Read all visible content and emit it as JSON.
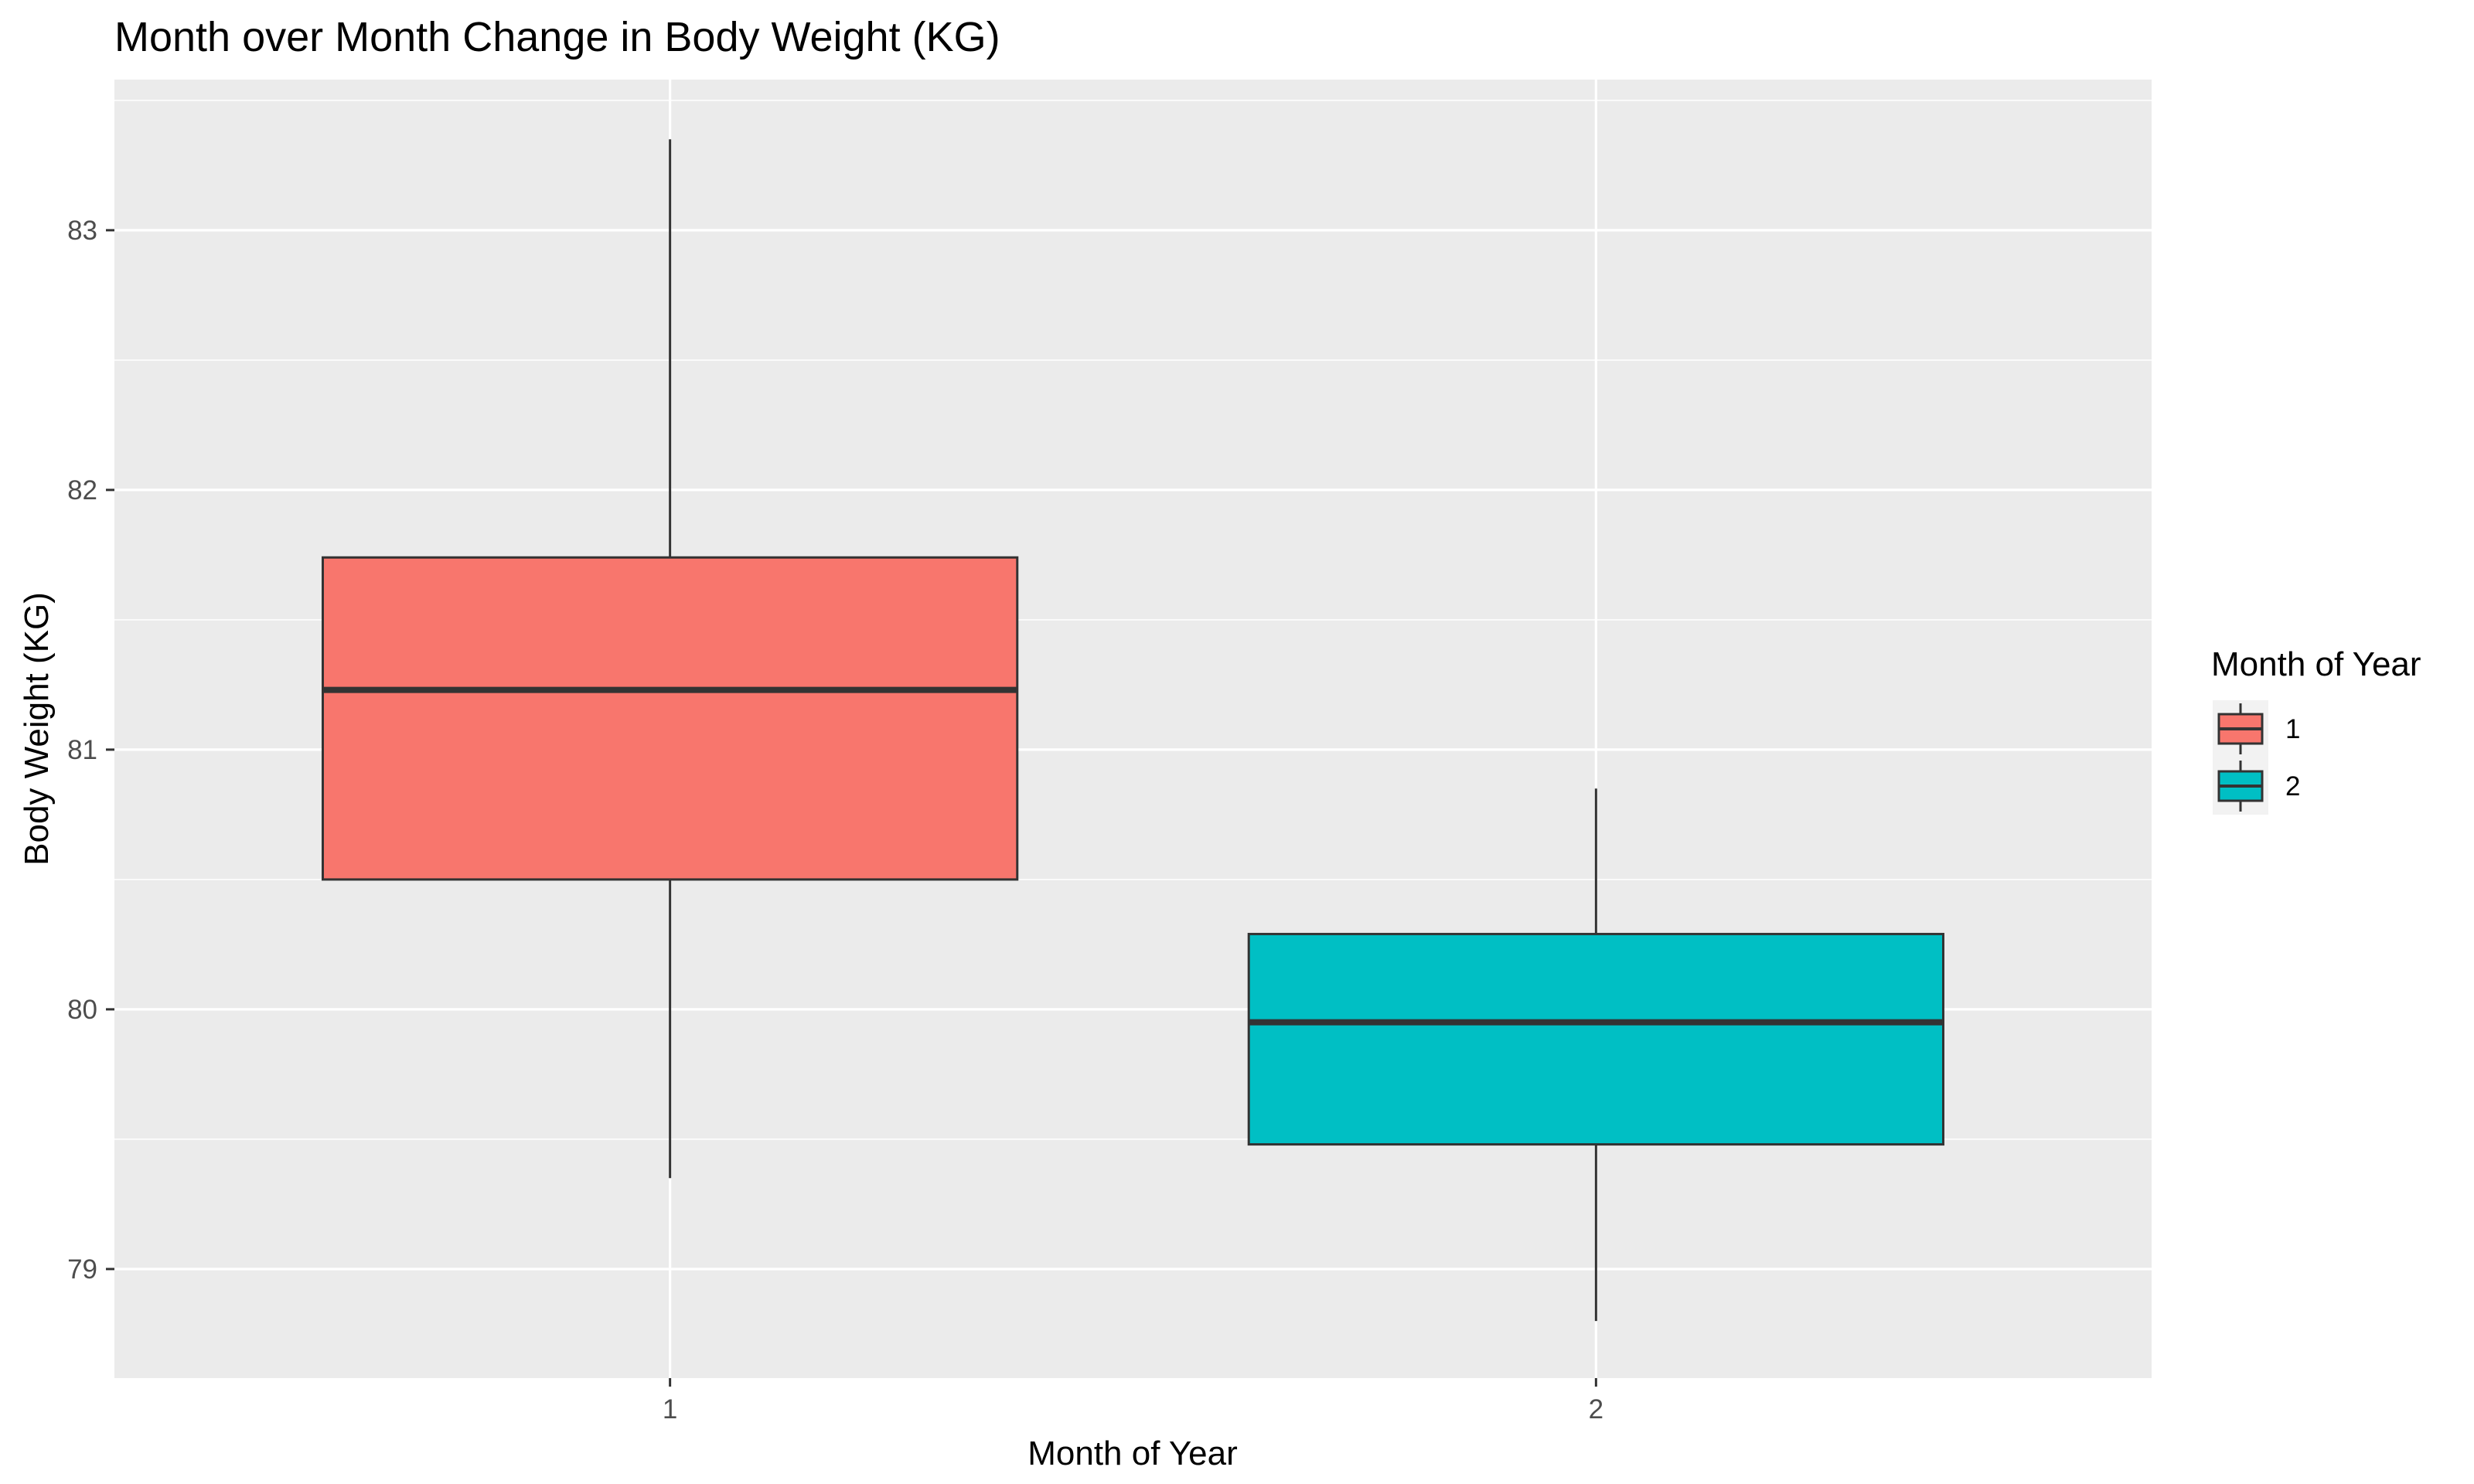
{
  "chart_data": {
    "type": "boxplot",
    "title": "Month over Month Change in Body Weight (KG)",
    "xlabel": "Month of Year",
    "ylabel": "Body Weight (KG)",
    "ylim": [
      78.58,
      83.58
    ],
    "yticks": [
      79,
      80,
      81,
      82,
      83
    ],
    "categories": [
      "1",
      "2"
    ],
    "boxes": [
      {
        "category": "1",
        "min": 79.35,
        "q1": 80.5,
        "median": 81.23,
        "q3": 81.74,
        "max": 83.35,
        "color": "#F8766D"
      },
      {
        "category": "2",
        "min": 78.8,
        "q1": 79.48,
        "median": 79.95,
        "q3": 80.29,
        "max": 80.85,
        "color": "#00BFC4"
      }
    ],
    "grid": true,
    "legend": {
      "title": "Month of Year",
      "position": "right",
      "entries": [
        "1",
        "2"
      ]
    }
  }
}
